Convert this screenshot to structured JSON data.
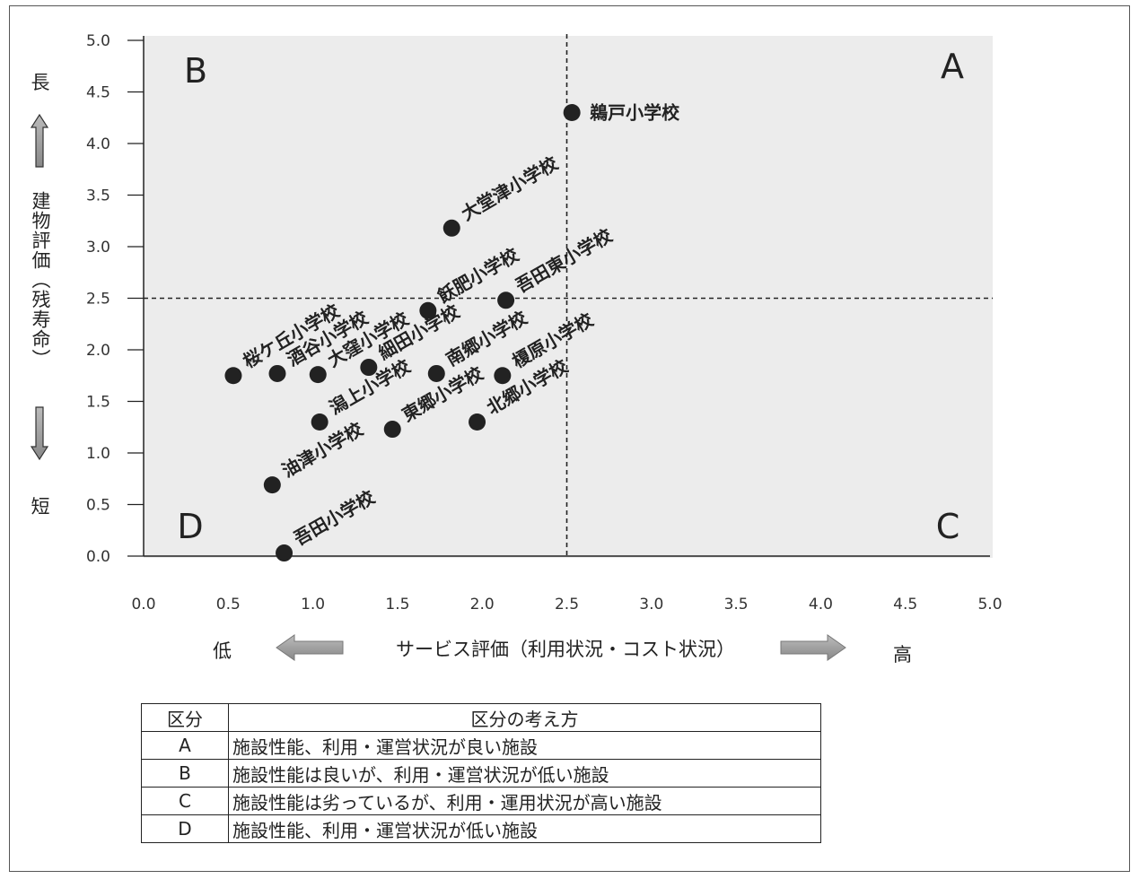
{
  "chart_data": {
    "type": "scatter",
    "xlabel": "サービス評価（利用状況・コスト状況）",
    "ylabel": "建物評価（残寿命）",
    "xlim": [
      0,
      5
    ],
    "ylim": [
      0,
      5
    ],
    "xticks": [
      "0.0",
      "0.5",
      "1.0",
      "1.5",
      "2.0",
      "2.5",
      "3.0",
      "3.5",
      "4.0",
      "4.5",
      "5.0"
    ],
    "yticks": [
      "0.0",
      "0.5",
      "1.0",
      "1.5",
      "2.0",
      "2.5",
      "3.0",
      "3.5",
      "4.0",
      "4.5",
      "5.0"
    ],
    "reference_lines": {
      "x": 2.5,
      "y": 2.5
    },
    "quadrants": [
      "A",
      "B",
      "C",
      "D"
    ],
    "x_low_label": "低",
    "x_high_label": "高",
    "y_high_label": "長",
    "y_low_label": "短",
    "points": [
      {
        "name": "鵜戸小学校",
        "x": 2.53,
        "y": 4.3
      },
      {
        "name": "大堂津小学校",
        "x": 1.82,
        "y": 3.18
      },
      {
        "name": "吾田東小学校",
        "x": 2.14,
        "y": 2.48
      },
      {
        "name": "飫肥小学校",
        "x": 1.68,
        "y": 2.38
      },
      {
        "name": "桜ケ丘小学校",
        "x": 0.53,
        "y": 1.75
      },
      {
        "name": "酒谷小学校",
        "x": 0.79,
        "y": 1.77
      },
      {
        "name": "大窪小学校",
        "x": 1.03,
        "y": 1.76
      },
      {
        "name": "細田小学校",
        "x": 1.33,
        "y": 1.83
      },
      {
        "name": "南郷小学校",
        "x": 1.73,
        "y": 1.77
      },
      {
        "name": "榎原小学校",
        "x": 2.12,
        "y": 1.75
      },
      {
        "name": "潟上小学校",
        "x": 1.04,
        "y": 1.3
      },
      {
        "name": "東郷小学校",
        "x": 1.47,
        "y": 1.23
      },
      {
        "name": "北郷小学校",
        "x": 1.97,
        "y": 1.3
      },
      {
        "name": "油津小学校",
        "x": 0.76,
        "y": 0.69
      },
      {
        "name": "吾田小学校",
        "x": 0.83,
        "y": 0.03
      }
    ]
  },
  "legend_table": {
    "headers": [
      "区分",
      "区分の考え方"
    ],
    "rows": [
      {
        "code": "A",
        "desc": "施設性能、利用・運営状況が良い施設"
      },
      {
        "code": "B",
        "desc": "施設性能は良いが、利用・運営状況が低い施設"
      },
      {
        "code": "C",
        "desc": "施設性能は劣っているが、利用・運用状況が高い施設"
      },
      {
        "code": "D",
        "desc": "施設性能、利用・運営状況が低い施設"
      }
    ]
  }
}
